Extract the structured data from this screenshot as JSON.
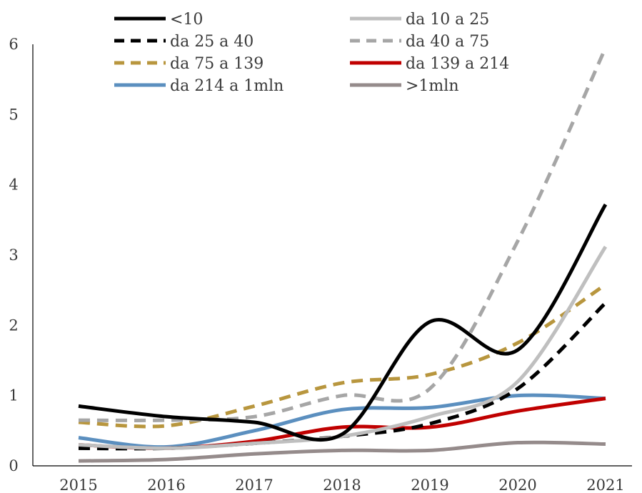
{
  "chart_data": {
    "type": "line",
    "x": [
      "2015",
      "2016",
      "2017",
      "2018",
      "2019",
      "2020",
      "2021"
    ],
    "ylim": [
      0,
      6
    ],
    "yticks": [
      "0",
      "1",
      "2",
      "3",
      "4",
      "5",
      "6"
    ],
    "grid": false,
    "legend_position": "top",
    "series": [
      {
        "name": "<10",
        "color": "#000000",
        "dash": "solid",
        "values": [
          0.85,
          0.7,
          0.62,
          0.45,
          2.05,
          1.65,
          3.72
        ]
      },
      {
        "name": "da 10 a 25",
        "color": "#bfbfbf",
        "dash": "solid",
        "values": [
          0.3,
          0.25,
          0.32,
          0.42,
          0.7,
          1.2,
          3.12
        ]
      },
      {
        "name": "da 25 a 40",
        "color": "#000000",
        "dash": "dashed",
        "values": [
          0.25,
          0.25,
          0.32,
          0.42,
          0.6,
          1.1,
          2.32
        ]
      },
      {
        "name": "da 40 a 75",
        "color": "#a6a6a6",
        "dash": "dashed",
        "values": [
          0.65,
          0.65,
          0.7,
          1.0,
          1.1,
          3.2,
          5.95
        ]
      },
      {
        "name": "da 75 a 139",
        "color": "#b8963e",
        "dash": "dashed",
        "values": [
          0.62,
          0.57,
          0.85,
          1.18,
          1.3,
          1.75,
          2.58
        ]
      },
      {
        "name": "da 139 a 214",
        "color": "#c00000",
        "dash": "solid",
        "values": [
          0.3,
          0.25,
          0.35,
          0.55,
          0.55,
          0.78,
          0.96
        ]
      },
      {
        "name": "da 214 a 1mln",
        "color": "#5b8fbf",
        "dash": "solid",
        "values": [
          0.4,
          0.27,
          0.5,
          0.8,
          0.83,
          1.0,
          0.96
        ]
      },
      {
        "name": ">1mln",
        "color": "#958b8b",
        "dash": "solid",
        "values": [
          0.07,
          0.09,
          0.17,
          0.22,
          0.22,
          0.33,
          0.31
        ]
      }
    ]
  }
}
